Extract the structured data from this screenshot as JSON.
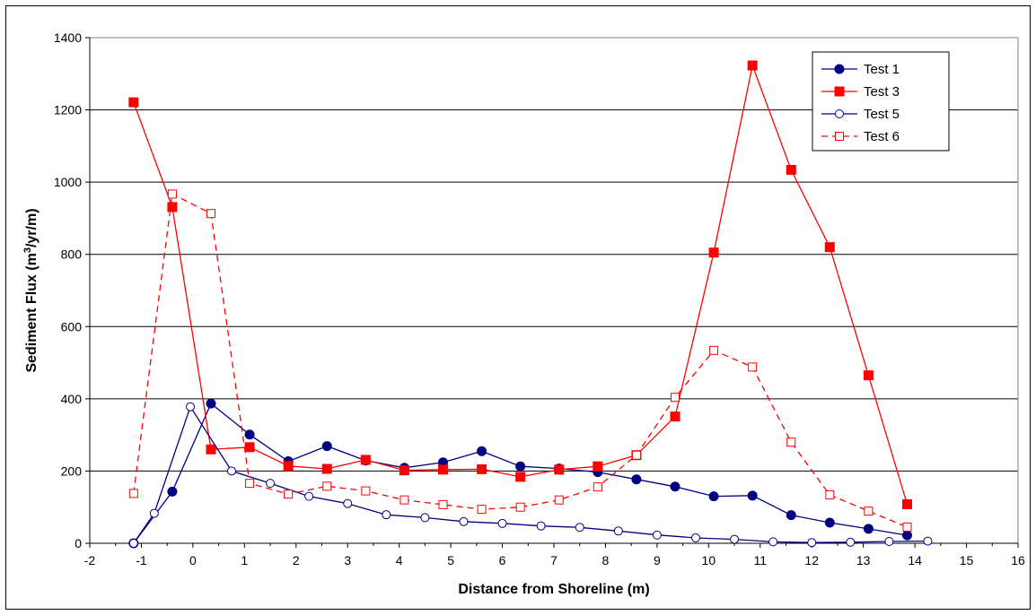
{
  "chart_data": {
    "type": "line",
    "title": "",
    "xlabel": "Distance from Shoreline (m)",
    "ylabel_main": "Sediment Flux (m",
    "ylabel_sup": "3",
    "ylabel_rest": "/yr/m)",
    "xlim": [
      -2,
      16
    ],
    "ylim": [
      0,
      1400
    ],
    "xticks": [
      -2,
      -1,
      0,
      1,
      2,
      3,
      4,
      5,
      6,
      7,
      8,
      9,
      10,
      11,
      12,
      13,
      14,
      15,
      16
    ],
    "yticks": [
      0,
      200,
      400,
      600,
      800,
      1000,
      1200,
      1400
    ],
    "grid": "horizontal",
    "legend_position": "top-right",
    "series": [
      {
        "name": "Test 1",
        "color": "#000080",
        "marker": "filled-circle",
        "dashed": false,
        "x": [
          -1.15,
          -0.4,
          0.35,
          1.1,
          1.85,
          2.6,
          3.35,
          4.1,
          4.85,
          5.6,
          6.35,
          7.1,
          7.85,
          8.6,
          9.35,
          10.1,
          10.85,
          11.6,
          12.35,
          13.1,
          13.85
        ],
        "y": [
          0,
          143,
          387,
          301,
          227,
          269,
          229,
          209,
          224,
          255,
          213,
          207,
          197,
          177,
          157,
          130,
          132,
          78,
          57,
          40,
          22
        ]
      },
      {
        "name": "Test 3",
        "color": "#ff0000",
        "marker": "filled-square",
        "dashed": false,
        "x": [
          -1.15,
          -0.4,
          0.35,
          1.1,
          1.85,
          2.6,
          3.35,
          4.1,
          4.85,
          5.6,
          6.35,
          7.1,
          7.85,
          8.6,
          9.35,
          10.1,
          10.85,
          11.6,
          12.35,
          13.1,
          13.85
        ],
        "y": [
          1221,
          931,
          260,
          266,
          214,
          206,
          231,
          202,
          204,
          205,
          184,
          204,
          213,
          244,
          351,
          805,
          1323,
          1034,
          820,
          465,
          108
        ]
      },
      {
        "name": "Test 5",
        "color": "#000080",
        "marker": "open-circle",
        "dashed": false,
        "x": [
          -1.15,
          -0.75,
          -0.05,
          0.75,
          1.5,
          2.25,
          3.0,
          3.75,
          4.5,
          5.25,
          6.0,
          6.75,
          7.5,
          8.25,
          9.0,
          9.75,
          10.5,
          11.25,
          12.0,
          12.75,
          13.5,
          14.25
        ],
        "y": [
          0,
          83,
          378,
          200,
          166,
          130,
          110,
          79,
          71,
          60,
          55,
          48,
          44,
          34,
          23,
          15,
          11,
          4,
          2,
          3,
          5,
          6
        ]
      },
      {
        "name": "Test 6",
        "color": "#ff0000",
        "marker": "open-square",
        "dashed": true,
        "x": [
          -1.15,
          -0.4,
          0.35,
          1.1,
          1.85,
          2.6,
          3.35,
          4.1,
          4.85,
          5.6,
          6.35,
          7.1,
          7.85,
          8.6,
          9.35,
          10.1,
          10.85,
          11.6,
          12.35,
          13.1,
          13.85
        ],
        "y": [
          138,
          967,
          913,
          166,
          136,
          158,
          145,
          120,
          107,
          94,
          100,
          120,
          156,
          244,
          404,
          534,
          488,
          280,
          134,
          89,
          45
        ]
      }
    ]
  }
}
